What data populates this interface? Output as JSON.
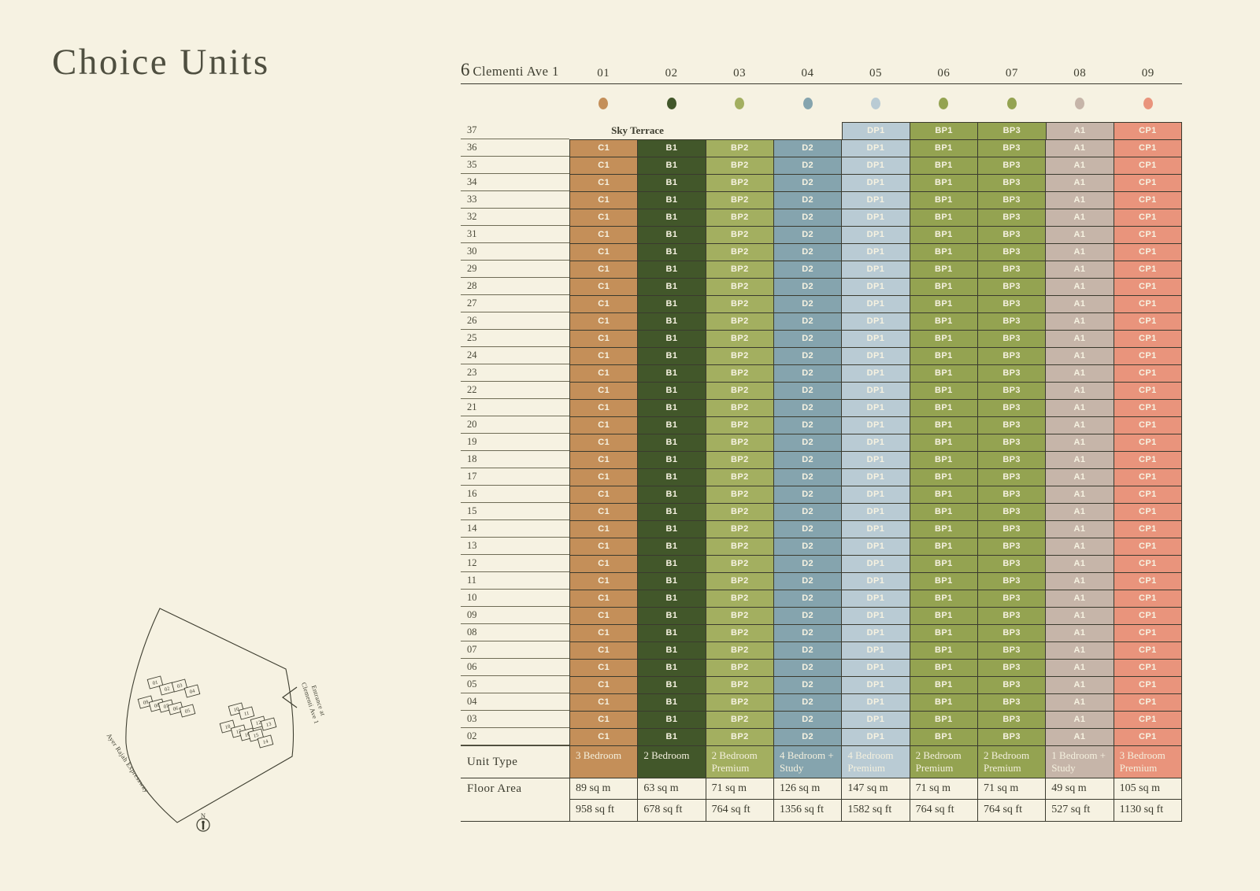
{
  "page": {
    "title": "Choice Units"
  },
  "chart": {
    "building": {
      "number": "6",
      "street": "Clementi Ave 1"
    },
    "stacks": [
      "01",
      "02",
      "03",
      "04",
      "05",
      "06",
      "07",
      "08",
      "09"
    ],
    "stack_units": [
      "C1",
      "B1",
      "BP2",
      "D2",
      "DP1",
      "BP1",
      "BP3",
      "A1",
      "CP1"
    ],
    "sky_terrace": {
      "floor": "37",
      "label": "Sky Terrace",
      "units": [
        null,
        null,
        null,
        null,
        "DP1",
        "BP1",
        "BP3",
        "A1",
        "CP1"
      ]
    },
    "floors": [
      "36",
      "35",
      "34",
      "33",
      "32",
      "31",
      "30",
      "29",
      "28",
      "27",
      "26",
      "25",
      "24",
      "23",
      "22",
      "21",
      "20",
      "19",
      "18",
      "17",
      "16",
      "15",
      "14",
      "13",
      "12",
      "11",
      "10",
      "09",
      "08",
      "07",
      "06",
      "05",
      "04",
      "03",
      "02"
    ],
    "unit_type_label": "Unit Type",
    "unit_types": [
      "3 Bedroom",
      "2 Bedroom",
      "2 Bedroom Premium",
      "4 Bedroom + Study",
      "4 Bedroom Premium",
      "2 Bedroom Premium",
      "2 Bedroom Premium",
      "1 Bedroom + Study",
      "3 Bedroom Premium"
    ],
    "floor_area_label": "Floor Area",
    "floor_area_sqm": [
      "89 sq m",
      "63 sq m",
      "71 sq m",
      "126 sq m",
      "147 sq m",
      "71 sq m",
      "71 sq m",
      "49 sq m",
      "105 sq m"
    ],
    "floor_area_sqft": [
      "958 sq ft",
      "678 sq ft",
      "764 sq ft",
      "1356 sq ft",
      "1582 sq ft",
      "764 sq ft",
      "764 sq ft",
      "527 sq ft",
      "1130 sq ft"
    ],
    "unit_colors": {
      "C1": "#C48F59",
      "B1": "#42572A",
      "BP2": "#A3AF60",
      "D2": "#85A4AE",
      "DP1": "#B9CBD4",
      "BP1": "#94A351",
      "BP3": "#94A351",
      "A1": "#C6B5A9",
      "CP1": "#E9947C"
    }
  },
  "site_plan": {
    "expressway_label": "Ayer Rajah Expressway",
    "entrance_label_line1": "Entrance at",
    "entrance_label_line2": "Clementi Ave 1",
    "north_label": "N",
    "blocks_left": [
      "01",
      "02",
      "03",
      "04",
      "09",
      "08",
      "07",
      "06",
      "05"
    ],
    "blocks_right": [
      "10",
      "11",
      "12",
      "13",
      "18",
      "17",
      "16",
      "15",
      "14"
    ]
  }
}
